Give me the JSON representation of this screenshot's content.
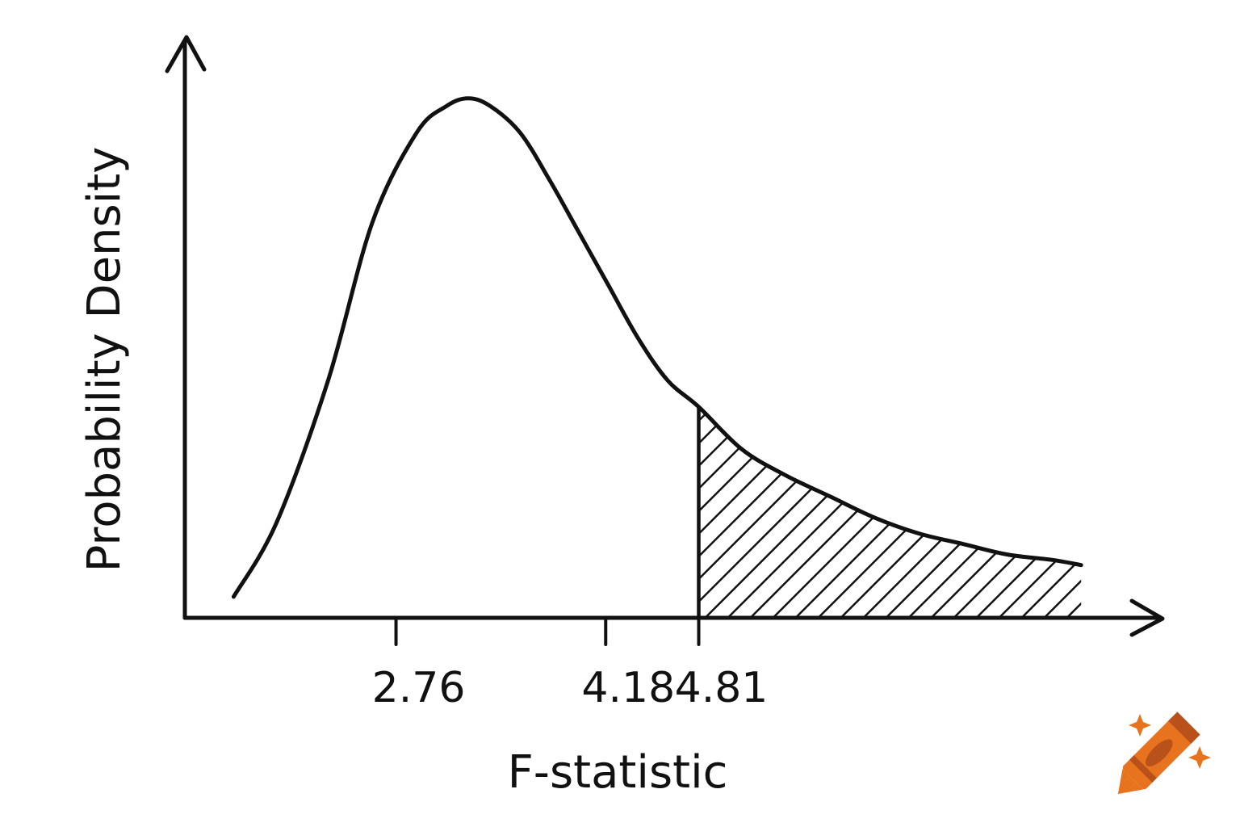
{
  "chart_data": {
    "type": "area",
    "title": "",
    "xlabel": "F-statistic",
    "ylabel": "Probability Density",
    "xticks": [
      2.76,
      4.18,
      4.81
    ],
    "xtick_labels": [
      "2.76",
      "4.18",
      "4.81"
    ],
    "xlim": [
      1.33,
      7.94
    ],
    "ylim": [
      0,
      1
    ],
    "grid": false,
    "legend": "none",
    "shaded_region": {
      "from": 4.81,
      "to": 7.4,
      "style": "hatched"
    },
    "series": [
      {
        "values_x": [
          1.66,
          1.95,
          2.3,
          2.6,
          2.9,
          3.1,
          3.25,
          3.4,
          3.6,
          3.8,
          4.0,
          4.2,
          4.4,
          4.6,
          4.81,
          5.1,
          5.4,
          5.7,
          6.0,
          6.3,
          6.6,
          6.9,
          7.2,
          7.4
        ],
        "values_y": [
          0.04,
          0.18,
          0.45,
          0.75,
          0.92,
          0.97,
          0.985,
          0.97,
          0.92,
          0.83,
          0.73,
          0.63,
          0.53,
          0.45,
          0.4,
          0.32,
          0.27,
          0.23,
          0.19,
          0.16,
          0.14,
          0.12,
          0.11,
          0.1
        ]
      }
    ]
  },
  "brand": {
    "logo_icon": "crayon-icon",
    "accent_color": "#e8731f"
  }
}
